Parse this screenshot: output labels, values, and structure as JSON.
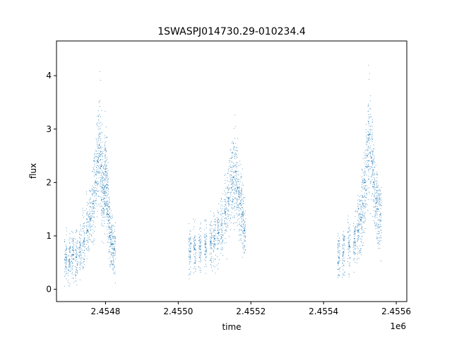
{
  "chart_data": {
    "type": "scatter",
    "title": "1SWASPJ014730.29-010234.4",
    "xlabel": "time",
    "ylabel": "flux",
    "x_offset_label": "1e6",
    "xlim": [
      2454665,
      2455629
    ],
    "ylim": [
      -0.23,
      4.65
    ],
    "x_ticks": [
      2.4548,
      2.455,
      2.4552,
      2.4554,
      2.4556
    ],
    "x_tick_labels": [
      "2.4548",
      "2.4550",
      "2.4552",
      "2.4554",
      "2.4556"
    ],
    "y_ticks": [
      0,
      1,
      2,
      3,
      4
    ],
    "y_tick_labels": [
      "0",
      "1",
      "2",
      "3",
      "4"
    ],
    "grid": false,
    "point_color": "#1f77b4",
    "series": [
      {
        "x": [
          2454690,
          2454700,
          2454710,
          2454720,
          2454730,
          2454740,
          2454750,
          2454758,
          2454766,
          2454772,
          2454778,
          2454783,
          2454788,
          2454792,
          2454796,
          2454800,
          2454804,
          2454808,
          2454812,
          2454818,
          2454824,
          2455032,
          2455045,
          2455060,
          2455075,
          2455090,
          2455100,
          2455110,
          2455120,
          2455130,
          2455138,
          2455146,
          2455152,
          2455158,
          2455164,
          2455170,
          2455176,
          2455182,
          2455442,
          2455455,
          2455470,
          2455485,
          2455495,
          2455502,
          2455508,
          2455514,
          2455520,
          2455526,
          2455532,
          2455538,
          2455544,
          2455550,
          2455556
        ],
        "y": [
          0.6,
          0.55,
          0.65,
          0.6,
          0.7,
          0.9,
          1.1,
          1.3,
          1.6,
          2.0,
          2.4,
          2.7,
          2.3,
          1.9,
          1.8,
          2.2,
          1.9,
          1.4,
          1.0,
          0.85,
          0.75,
          0.7,
          0.75,
          0.8,
          0.85,
          0.9,
          0.95,
          1.05,
          1.2,
          1.45,
          1.7,
          1.9,
          2.1,
          2.2,
          1.9,
          1.6,
          1.4,
          1.1,
          0.6,
          0.7,
          0.8,
          0.95,
          1.1,
          1.3,
          1.6,
          2.0,
          2.5,
          2.9,
          2.4,
          2.0,
          1.7,
          1.5,
          1.4
        ]
      }
    ]
  }
}
